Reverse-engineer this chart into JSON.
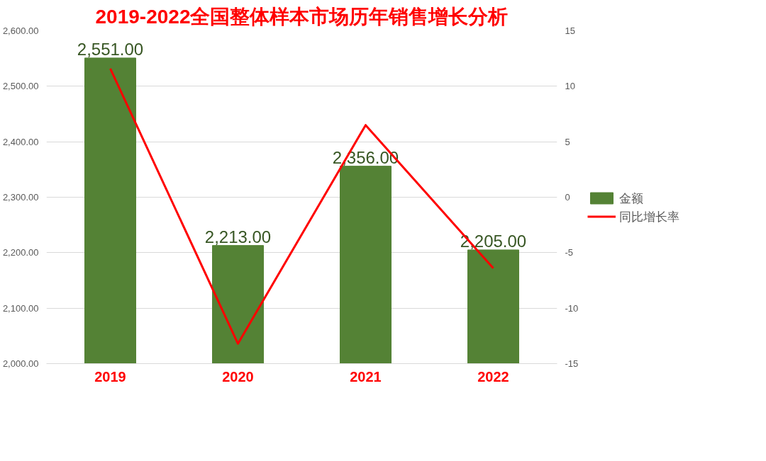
{
  "chart_data": {
    "type": "bar",
    "title": "2019-2022全国整体样本市场历年销售增长分析",
    "categories": [
      "2019",
      "2020",
      "2021",
      "2022"
    ],
    "series": [
      {
        "name": "金额",
        "color": "#548235",
        "values": [
          2551,
          2213,
          2356,
          2205
        ],
        "value_labels": [
          "2,551.00",
          "2,213.00",
          "2,356.00",
          "2,205.00"
        ]
      },
      {
        "name": "同比增长率",
        "type": "line",
        "axis": "y2",
        "color": "#ff0000",
        "values": [
          11.6,
          -13.2,
          6.5,
          -6.4
        ]
      }
    ],
    "ylim": [
      2000,
      2600
    ],
    "yticks": [
      {
        "value": 2000,
        "label": "2,000.00"
      },
      {
        "value": 2100,
        "label": "2,100.00"
      },
      {
        "value": 2200,
        "label": "2,200.00"
      },
      {
        "value": 2300,
        "label": "2,300.00"
      },
      {
        "value": 2400,
        "label": "2,400.00"
      },
      {
        "value": 2500,
        "label": "2,500.00"
      },
      {
        "value": 2600,
        "label": "2,600.00"
      }
    ],
    "y2lim": [
      -15,
      15
    ],
    "y2ticks": [
      -15,
      -10,
      -5,
      0,
      5,
      10,
      15
    ],
    "grid": "y",
    "legend": "right",
    "marker": "none",
    "line_style": "solid"
  }
}
